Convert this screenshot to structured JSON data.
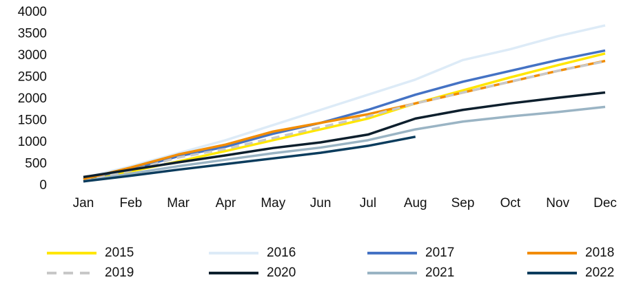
{
  "chart_data": {
    "type": "line",
    "categories": [
      "Jan",
      "Feb",
      "Mar",
      "Apr",
      "May",
      "Jun",
      "Jul",
      "Aug",
      "Sep",
      "Oct",
      "Nov",
      "Dec"
    ],
    "series": [
      {
        "name": "2015",
        "color": "#ffe600",
        "values": [
          150,
          330,
          560,
          800,
          1050,
          1300,
          1550,
          1900,
          2200,
          2500,
          2780,
          3050
        ]
      },
      {
        "name": "2016",
        "color": "#ddebf7",
        "values": [
          180,
          450,
          750,
          1050,
          1400,
          1750,
          2100,
          2450,
          2900,
          3150,
          3450,
          3700
        ]
      },
      {
        "name": "2017",
        "color": "#4472c4",
        "values": [
          150,
          380,
          680,
          900,
          1200,
          1450,
          1750,
          2100,
          2400,
          2650,
          2900,
          3120
        ]
      },
      {
        "name": "2018",
        "color": "#f28c00",
        "values": [
          150,
          420,
          720,
          950,
          1250,
          1450,
          1650,
          1900,
          2150,
          2400,
          2650,
          2880
        ]
      },
      {
        "name": "2019",
        "color": "#c8c8c8",
        "dashed": true,
        "values": [
          100,
          350,
          650,
          850,
          1100,
          1350,
          1600,
          1900,
          2150,
          2400,
          2650,
          2870
        ]
      },
      {
        "name": "2020",
        "color": "#0d1f2d",
        "values": [
          200,
          370,
          540,
          700,
          870,
          1000,
          1180,
          1550,
          1750,
          1900,
          2030,
          2150
        ]
      },
      {
        "name": "2021",
        "color": "#9ab4c4",
        "values": [
          100,
          280,
          450,
          600,
          750,
          880,
          1050,
          1300,
          1480,
          1600,
          1700,
          1820
        ]
      },
      {
        "name": "2022",
        "color": "#0b3c5d",
        "values": [
          100,
          230,
          370,
          500,
          630,
          760,
          920,
          1130,
          null,
          null,
          null,
          null
        ]
      }
    ],
    "ylim": [
      0,
      4000
    ],
    "yticks": [
      0,
      500,
      1000,
      1500,
      2000,
      2500,
      3000,
      3500,
      4000
    ],
    "grid": false,
    "legend": "bottom"
  }
}
